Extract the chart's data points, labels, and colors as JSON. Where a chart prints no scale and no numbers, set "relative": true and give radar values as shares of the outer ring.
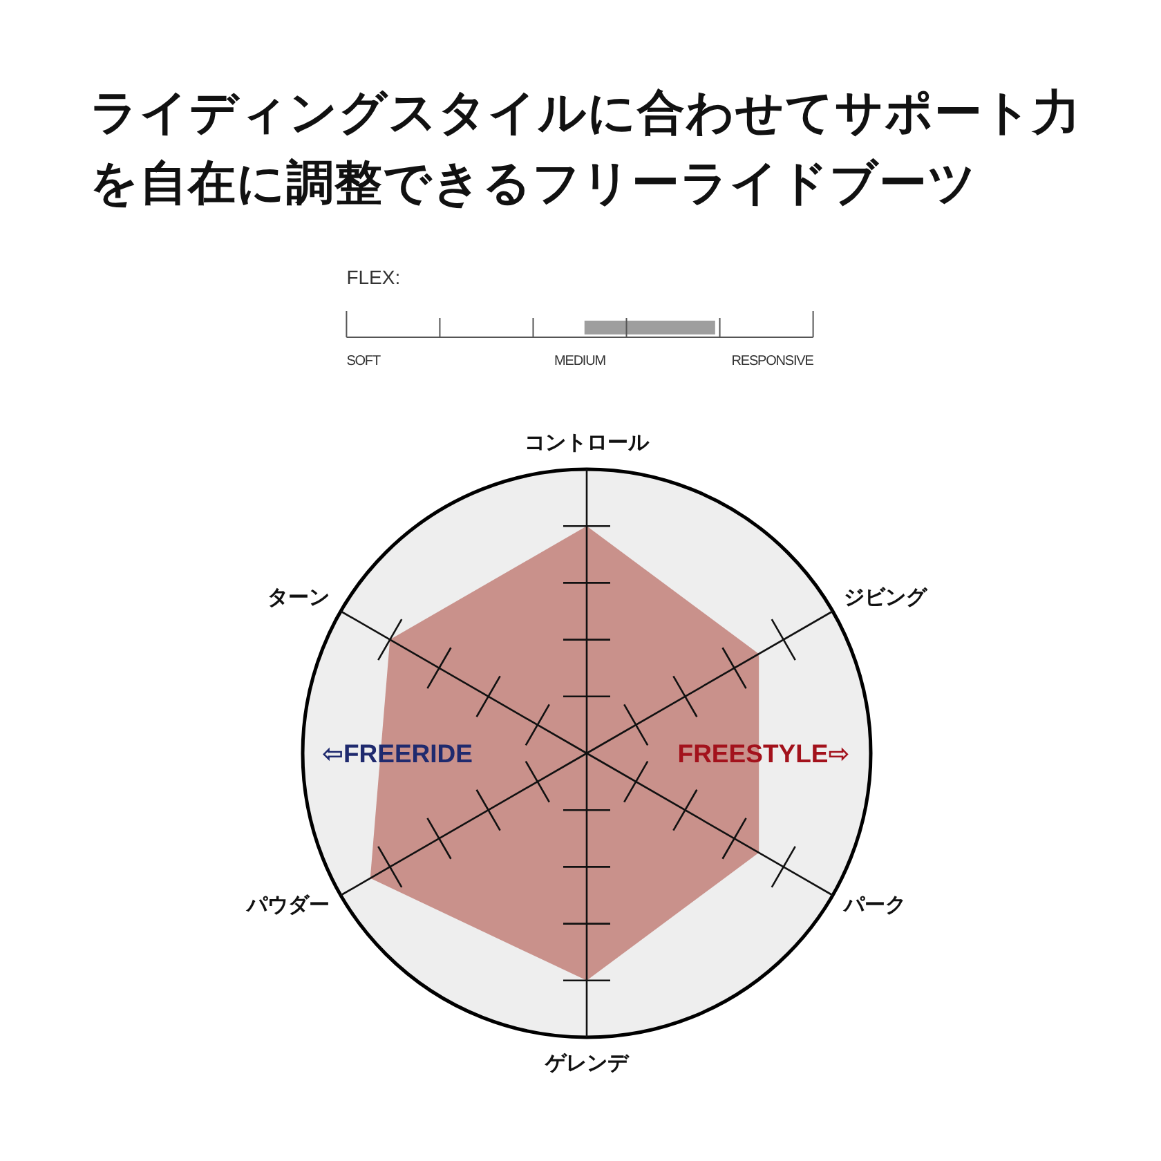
{
  "chart_data": [
    {
      "type": "other",
      "title": "ライディングスタイルに合わせてサポート力を自在に調整できるフリーライドブーツ"
    },
    {
      "type": "other",
      "title": "FLEX:",
      "annotations": [
        "SOFT",
        "MEDIUM",
        "RESPONSIVE"
      ]
    },
    {
      "type": "radar",
      "relative": true,
      "categories": [
        "コントロール",
        "ジビング",
        "パーク",
        "ゲレンデ",
        "パウダー",
        "ターン"
      ],
      "series": [
        {
          "color": "#c9918b",
          "values": [
            0.8,
            0.7,
            0.7,
            0.8,
            0.88,
            0.8
          ]
        }
      ],
      "annotations": [
        "⇦FREERIDE",
        "FREESTYLE⇨"
      ]
    }
  ]
}
